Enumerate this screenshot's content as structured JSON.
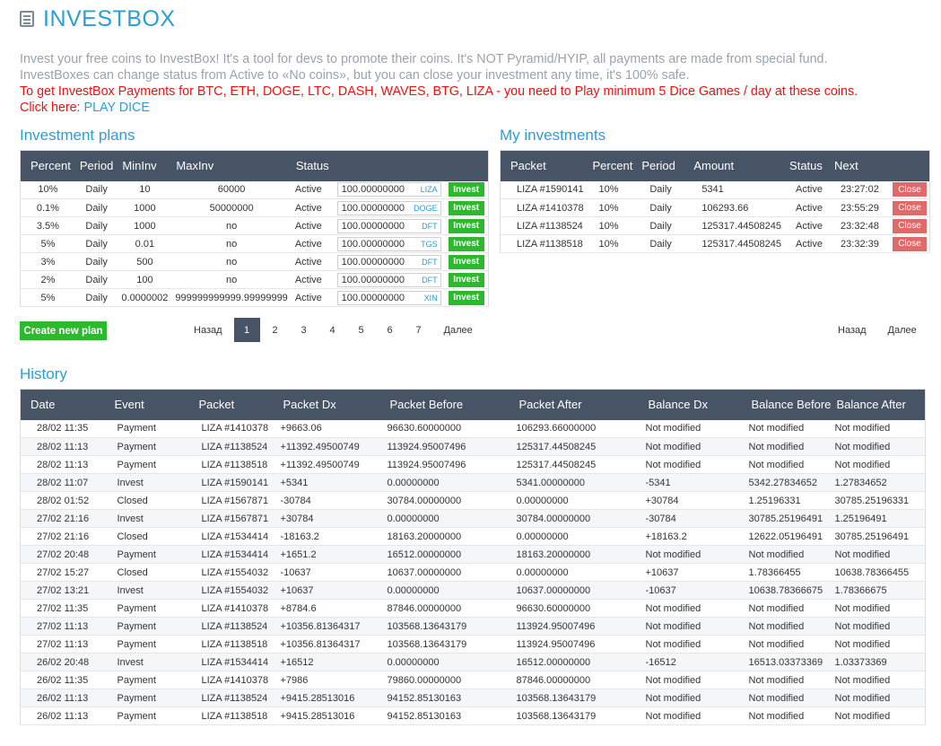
{
  "header": {
    "title": "INVESTBOX",
    "icon": "ledger-icon"
  },
  "intro": {
    "line1": "Invest your free coins to InvestBox! It's a tool for devs to promote their coins. It's NOT Pyramid/HYIP, all payments are made from special fund.",
    "line2": "InvestBoxes can change status from Active to «No coins», but you can close your investment any time, it's 100% safe.",
    "line3": "To get InvestBox Payments for BTC, ETH, DOGE, LTC, DASH, WAVES, BTG, LIZA - you need to Play minimum 5 Dice Games / day at these coins.",
    "click_here": "Click here:",
    "play_dice": "PLAY DICE"
  },
  "plans": {
    "title": "Investment plans",
    "headers": [
      "Percent",
      "Period",
      "MinInv",
      "MaxInv",
      "Status"
    ],
    "rows": [
      {
        "percent": "10%",
        "period": "Daily",
        "min": "10",
        "max": "60000",
        "status": "Active",
        "amount": "100.00000000",
        "coin": "LIZA"
      },
      {
        "percent": "0.1%",
        "period": "Daily",
        "min": "1000",
        "max": "50000000",
        "status": "Active",
        "amount": "100.00000000",
        "coin": "DOGE"
      },
      {
        "percent": "3.5%",
        "period": "Daily",
        "min": "1000",
        "max": "no",
        "status": "Active",
        "amount": "100.00000000",
        "coin": "DFT"
      },
      {
        "percent": "5%",
        "period": "Daily",
        "min": "0.01",
        "max": "no",
        "status": "Active",
        "amount": "100.00000000",
        "coin": "TGS"
      },
      {
        "percent": "3%",
        "period": "Daily",
        "min": "500",
        "max": "no",
        "status": "Active",
        "amount": "100.00000000",
        "coin": "DFT"
      },
      {
        "percent": "2%",
        "period": "Daily",
        "min": "100",
        "max": "no",
        "status": "Active",
        "amount": "100.00000000",
        "coin": "DFT"
      },
      {
        "percent": "5%",
        "period": "Daily",
        "min": "0.0000002",
        "max": "999999999999.99999999",
        "status": "Active",
        "amount": "100.00000000",
        "coin": "XIN"
      }
    ],
    "invest_label": "Invest",
    "create_label": "Create new plan",
    "pager": {
      "prev": "Назад",
      "next": "Далее",
      "pages": [
        "1",
        "2",
        "3",
        "4",
        "5",
        "6",
        "7"
      ]
    }
  },
  "my": {
    "title": "My investments",
    "headers": [
      "Packet",
      "Percent",
      "Period",
      "Amount",
      "Status",
      "Next"
    ],
    "rows": [
      {
        "packet": "LIZA #1590141",
        "percent": "10%",
        "period": "Daily",
        "amount": "5341",
        "status": "Active",
        "next": "23:27:02"
      },
      {
        "packet": "LIZA #1410378",
        "percent": "10%",
        "period": "Daily",
        "amount": "106293.66",
        "status": "Active",
        "next": "23:55:29"
      },
      {
        "packet": "LIZA #1138524",
        "percent": "10%",
        "period": "Daily",
        "amount": "125317.44508245",
        "status": "Active",
        "next": "23:32:48"
      },
      {
        "packet": "LIZA #1138518",
        "percent": "10%",
        "period": "Daily",
        "amount": "125317.44508245",
        "status": "Active",
        "next": "23:32:39"
      }
    ],
    "close_label": "Close",
    "pager": {
      "prev": "Назад",
      "next": "Далее"
    }
  },
  "history": {
    "title": "History",
    "headers": [
      "Date",
      "Event",
      "Packet",
      "Packet Dx",
      "Packet Before",
      "Packet After",
      "Balance Dx",
      "Balance Before",
      "Balance After"
    ],
    "rows": [
      {
        "date": "28/02 11:35",
        "event": "Payment",
        "packet": "LIZA #1410378",
        "pdx": "+9663.06",
        "pbefore": "96630.60000000",
        "pafter": "106293.66000000",
        "bdx": "Not modified",
        "bbefore": "Not modified",
        "bafter": "Not modified"
      },
      {
        "date": "28/02 11:13",
        "event": "Payment",
        "packet": "LIZA #1138524",
        "pdx": "+11392.49500749",
        "pbefore": "113924.95007496",
        "pafter": "125317.44508245",
        "bdx": "Not modified",
        "bbefore": "Not modified",
        "bafter": "Not modified"
      },
      {
        "date": "28/02 11:13",
        "event": "Payment",
        "packet": "LIZA #1138518",
        "pdx": "+11392.49500749",
        "pbefore": "113924.95007496",
        "pafter": "125317.44508245",
        "bdx": "Not modified",
        "bbefore": "Not modified",
        "bafter": "Not modified"
      },
      {
        "date": "28/02 11:07",
        "event": "Invest",
        "packet": "LIZA #1590141",
        "pdx": "+5341",
        "pbefore": "0.00000000",
        "pafter": "5341.00000000",
        "bdx": "-5341",
        "bbefore": "5342.27834652",
        "bafter": "1.27834652"
      },
      {
        "date": "28/02 01:52",
        "event": "Closed",
        "packet": "LIZA #1567871",
        "pdx": "-30784",
        "pbefore": "30784.00000000",
        "pafter": "0.00000000",
        "bdx": "+30784",
        "bbefore": "1.25196331",
        "bafter": "30785.25196331"
      },
      {
        "date": "27/02 21:16",
        "event": "Invest",
        "packet": "LIZA #1567871",
        "pdx": "+30784",
        "pbefore": "0.00000000",
        "pafter": "30784.00000000",
        "bdx": "-30784",
        "bbefore": "30785.25196491",
        "bafter": "1.25196491"
      },
      {
        "date": "27/02 21:16",
        "event": "Closed",
        "packet": "LIZA #1534414",
        "pdx": "-18163.2",
        "pbefore": "18163.20000000",
        "pafter": "0.00000000",
        "bdx": "+18163.2",
        "bbefore": "12622.05196491",
        "bafter": "30785.25196491"
      },
      {
        "date": "27/02 20:48",
        "event": "Payment",
        "packet": "LIZA #1534414",
        "pdx": "+1651.2",
        "pbefore": "16512.00000000",
        "pafter": "18163.20000000",
        "bdx": "Not modified",
        "bbefore": "Not modified",
        "bafter": "Not modified"
      },
      {
        "date": "27/02 15:27",
        "event": "Closed",
        "packet": "LIZA #1554032",
        "pdx": "-10637",
        "pbefore": "10637.00000000",
        "pafter": "0.00000000",
        "bdx": "+10637",
        "bbefore": "1.78366455",
        "bafter": "10638.78366455"
      },
      {
        "date": "27/02 13:21",
        "event": "Invest",
        "packet": "LIZA #1554032",
        "pdx": "+10637",
        "pbefore": "0.00000000",
        "pafter": "10637.00000000",
        "bdx": "-10637",
        "bbefore": "10638.78366675",
        "bafter": "1.78366675"
      },
      {
        "date": "27/02 11:35",
        "event": "Payment",
        "packet": "LIZA #1410378",
        "pdx": "+8784.6",
        "pbefore": "87846.00000000",
        "pafter": "96630.60000000",
        "bdx": "Not modified",
        "bbefore": "Not modified",
        "bafter": "Not modified"
      },
      {
        "date": "27/02 11:13",
        "event": "Payment",
        "packet": "LIZA #1138524",
        "pdx": "+10356.81364317",
        "pbefore": "103568.13643179",
        "pafter": "113924.95007496",
        "bdx": "Not modified",
        "bbefore": "Not modified",
        "bafter": "Not modified"
      },
      {
        "date": "27/02 11:13",
        "event": "Payment",
        "packet": "LIZA #1138518",
        "pdx": "+10356.81364317",
        "pbefore": "103568.13643179",
        "pafter": "113924.95007496",
        "bdx": "Not modified",
        "bbefore": "Not modified",
        "bafter": "Not modified"
      },
      {
        "date": "26/02 20:48",
        "event": "Invest",
        "packet": "LIZA #1534414",
        "pdx": "+16512",
        "pbefore": "0.00000000",
        "pafter": "16512.00000000",
        "bdx": "-16512",
        "bbefore": "16513.03373369",
        "bafter": "1.03373369"
      },
      {
        "date": "26/02 11:35",
        "event": "Payment",
        "packet": "LIZA #1410378",
        "pdx": "+7986",
        "pbefore": "79860.00000000",
        "pafter": "87846.00000000",
        "bdx": "Not modified",
        "bbefore": "Not modified",
        "bafter": "Not modified"
      },
      {
        "date": "26/02 11:13",
        "event": "Payment",
        "packet": "LIZA #1138524",
        "pdx": "+9415.28513016",
        "pbefore": "94152.85130163",
        "pafter": "103568.13643179",
        "bdx": "Not modified",
        "bbefore": "Not modified",
        "bafter": "Not modified"
      },
      {
        "date": "26/02 11:13",
        "event": "Payment",
        "packet": "LIZA #1138518",
        "pdx": "+9415.28513016",
        "pbefore": "94152.85130163",
        "pafter": "103568.13643179",
        "bdx": "Not modified",
        "bbefore": "Not modified",
        "bafter": "Not modified"
      }
    ]
  },
  "colors": {
    "accent": "#2a9fd6",
    "header_bg": "#475466",
    "invest_green": "#2db92d",
    "close_red": "#e06a6a",
    "text_red": "#ee1111"
  }
}
